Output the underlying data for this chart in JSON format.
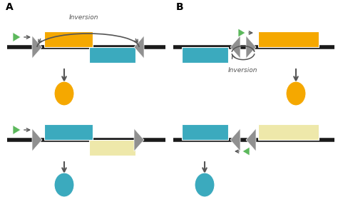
{
  "bg_color": "#ffffff",
  "yellow": "#F5A800",
  "blue": "#3BAABE",
  "light_yellow": "#EEE8AA",
  "green": "#5CB85C",
  "gray": "#909090",
  "black": "#1a1a1a",
  "dark_gray": "#555555",
  "label_A": "A",
  "label_B": "B",
  "inversion_text": "Inversion"
}
